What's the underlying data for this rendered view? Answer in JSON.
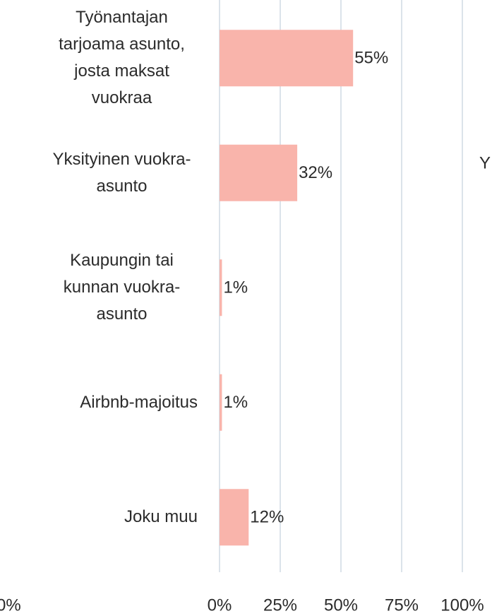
{
  "chart_data": {
    "type": "bar",
    "orientation": "horizontal",
    "categories": [
      "Työnantajan tarjoama asunto, josta maksat vuokraa",
      "Yksityinen vuokra-asunto",
      "Kaupungin tai kunnan vuokra-asunto",
      "Airbnb-majoitus",
      "Joku muu"
    ],
    "values": [
      55,
      32,
      1,
      1,
      12
    ],
    "value_labels": [
      "55%",
      "32%",
      "1%",
      "1%",
      "12%"
    ],
    "color": "#f9b4ab",
    "xlim": [
      0,
      100
    ],
    "xticks": [
      {
        "value": 0,
        "label": "0%"
      },
      {
        "value": 25,
        "label": "25%"
      },
      {
        "value": 50,
        "label": "50%"
      },
      {
        "value": 75,
        "label": "75%"
      },
      {
        "value": 100,
        "label": "100%"
      }
    ],
    "grid": true
  },
  "fragments": {
    "left": "0%",
    "right": "Y"
  }
}
